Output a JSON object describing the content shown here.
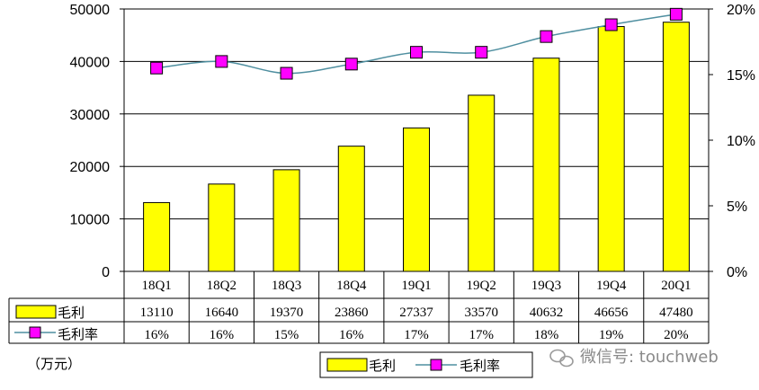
{
  "chart_data": {
    "type": "bar",
    "categories": [
      "18Q1",
      "18Q2",
      "18Q3",
      "18Q4",
      "19Q1",
      "19Q2",
      "19Q3",
      "19Q4",
      "20Q1"
    ],
    "series": [
      {
        "name": "毛利",
        "type": "bar",
        "axis": "left",
        "color": "#ffff00",
        "values": [
          13110,
          16640,
          19370,
          23860,
          27337,
          33570,
          40632,
          46656,
          47480
        ]
      },
      {
        "name": "毛利率",
        "type": "line",
        "axis": "right",
        "color": "#ff00ff",
        "line_color": "#4f8fa0",
        "values": [
          15.5,
          16.0,
          15.1,
          15.8,
          16.7,
          16.7,
          17.9,
          18.8,
          19.6
        ],
        "labels": [
          "16%",
          "16%",
          "15%",
          "16%",
          "17%",
          "17%",
          "18%",
          "19%",
          "20%"
        ]
      }
    ],
    "y_left": {
      "ticks": [
        "0",
        "10000",
        "20000",
        "30000",
        "40000",
        "50000"
      ],
      "ylim": [
        0,
        50000
      ]
    },
    "y_right": {
      "ticks": [
        "0%",
        "5%",
        "10%",
        "15%",
        "20%"
      ],
      "ylim": [
        0,
        20
      ]
    },
    "unit": "（万元）",
    "legend": {
      "position": "bottom-center",
      "items": [
        "毛利",
        "毛利率"
      ]
    },
    "grid": true
  },
  "watermark": {
    "text": "微信号: touchweb"
  }
}
